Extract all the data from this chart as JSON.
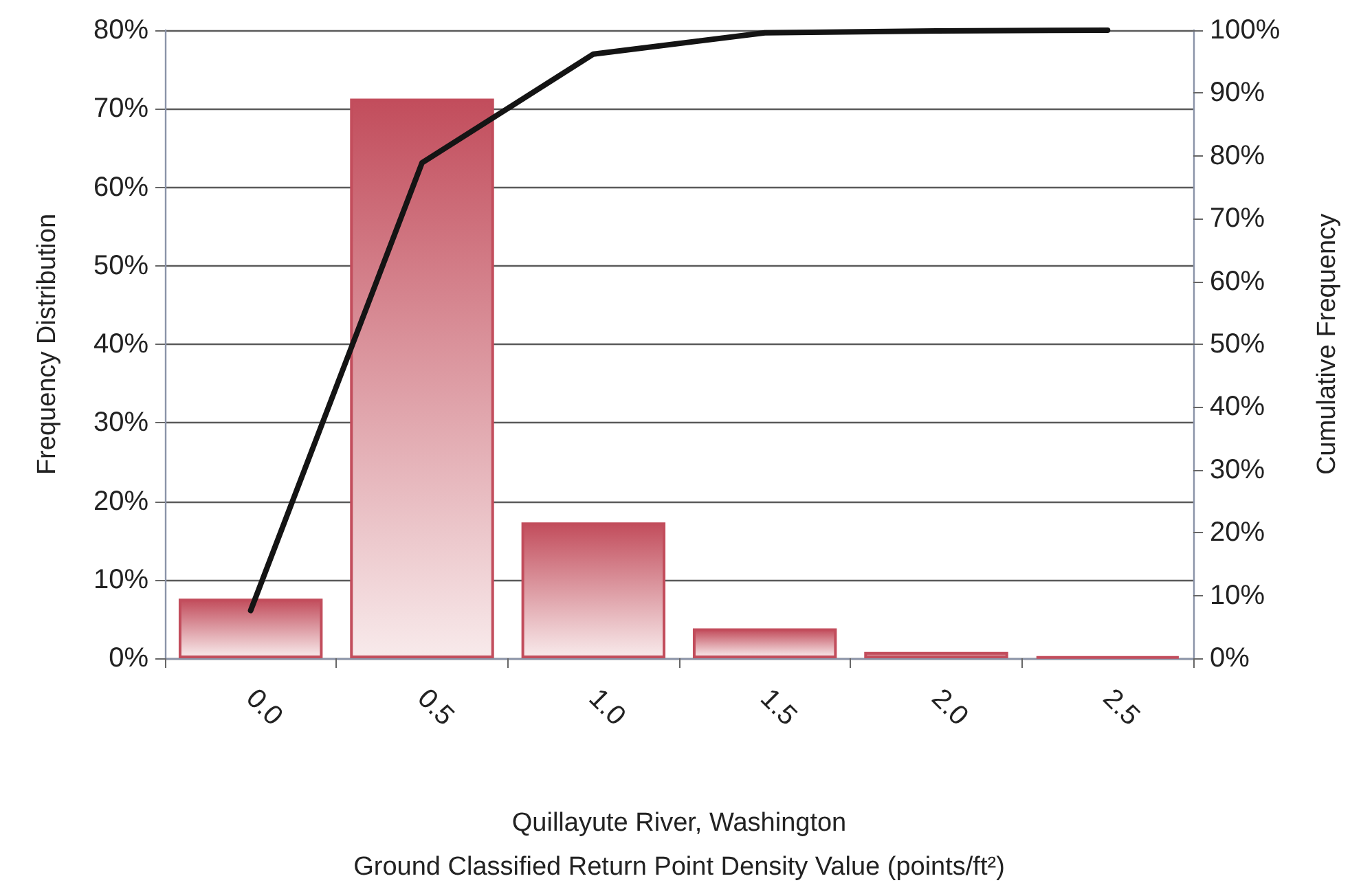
{
  "chart_data": {
    "type": "bar",
    "categories": [
      "0.0",
      "0.5",
      "1.0",
      "1.5",
      "2.0",
      "2.5"
    ],
    "xlabel": "Quillayute River, Washington\nGround Classified Return Point Density Value (points/ft²)",
    "ylabel": "Frequency Distribution",
    "y2label": "Cumulative Frequency",
    "ylim": [
      0,
      80
    ],
    "yticks": [
      {
        "value": 0,
        "label": "0%"
      },
      {
        "value": 10,
        "label": "10%"
      },
      {
        "value": 20,
        "label": "20%"
      },
      {
        "value": 30,
        "label": "30%"
      },
      {
        "value": 40,
        "label": "40%"
      },
      {
        "value": 50,
        "label": "50%"
      },
      {
        "value": 60,
        "label": "60%"
      },
      {
        "value": 70,
        "label": "70%"
      },
      {
        "value": 80,
        "label": "80%"
      }
    ],
    "y2lim": [
      0,
      100
    ],
    "y2ticks": [
      {
        "value": 0,
        "label": "0%"
      },
      {
        "value": 10,
        "label": "10%"
      },
      {
        "value": 20,
        "label": "20%"
      },
      {
        "value": 30,
        "label": "30%"
      },
      {
        "value": 40,
        "label": "40%"
      },
      {
        "value": 50,
        "label": "50%"
      },
      {
        "value": 60,
        "label": "60%"
      },
      {
        "value": 70,
        "label": "70%"
      },
      {
        "value": 80,
        "label": "80%"
      },
      {
        "value": 90,
        "label": "90%"
      },
      {
        "value": 100,
        "label": "100%"
      }
    ],
    "grid": "y",
    "marker": "none",
    "series": [
      {
        "color": "#c24d5c",
        "values": [
          7.6,
          71.3,
          17.3,
          3.8,
          0.8,
          0.2
        ]
      },
      {
        "type": "line",
        "axis": "y2",
        "color": "#141414",
        "values": [
          7.6,
          78.9,
          96.2,
          99.6,
          99.9,
          100
        ]
      }
    ]
  }
}
